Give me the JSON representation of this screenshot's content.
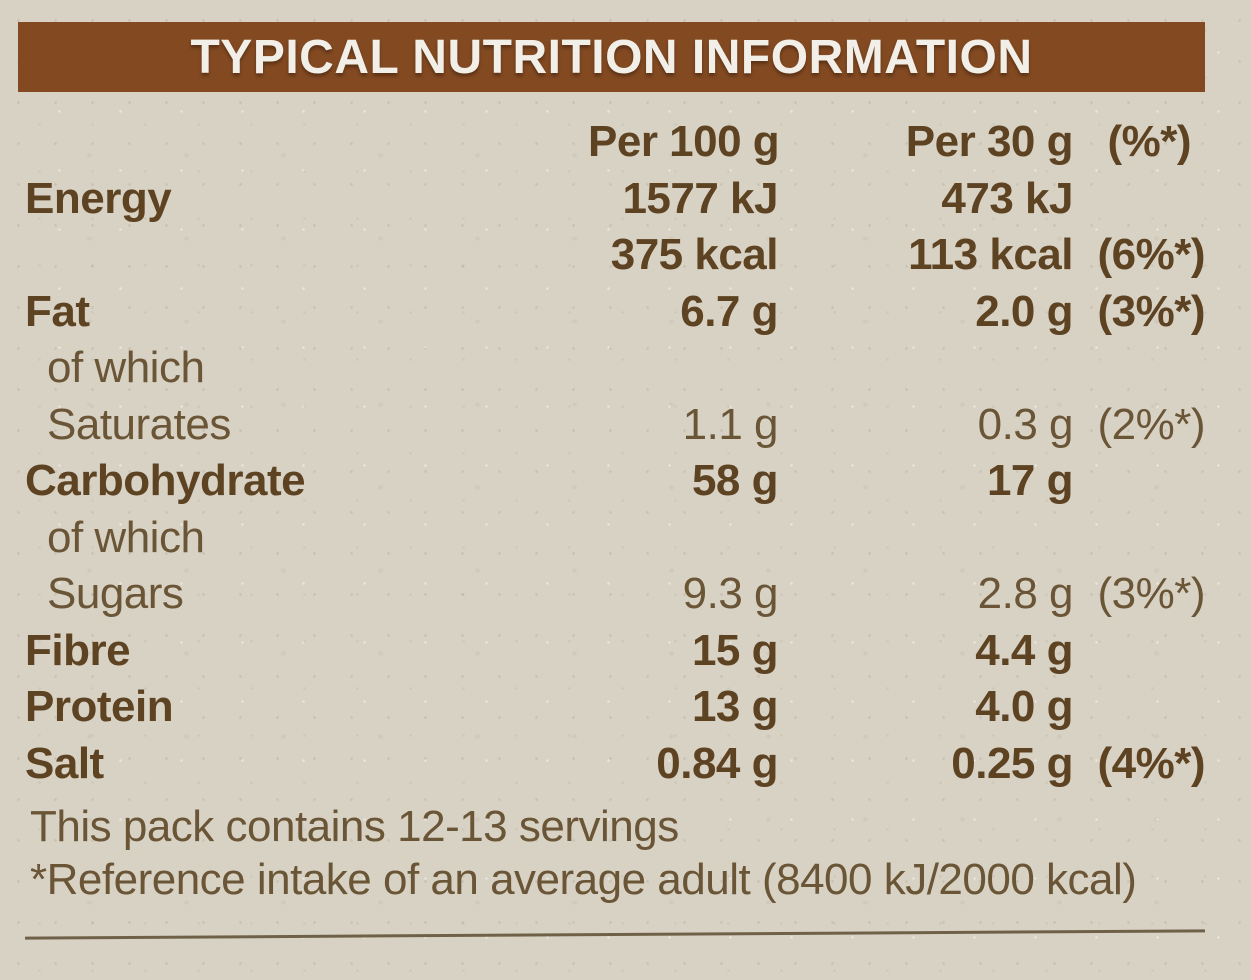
{
  "header": {
    "title": "TYPICAL NUTRITION INFORMATION"
  },
  "table": {
    "columns": [
      "",
      "Per 100 g",
      "Per 30 g",
      "(%*)"
    ],
    "rows": [
      {
        "label": "Energy",
        "per100": "1577 kJ",
        "per30": "473 kJ",
        "ri": "",
        "bold": true,
        "indent": false
      },
      {
        "label": "",
        "per100": "375 kcal",
        "per30": "113 kcal",
        "ri": "(6%*)",
        "bold": true,
        "indent": false
      },
      {
        "label": "Fat",
        "per100": "6.7 g",
        "per30": "2.0 g",
        "ri": "(3%*)",
        "bold": true,
        "indent": false
      },
      {
        "label": "of which",
        "per100": "",
        "per30": "",
        "ri": "",
        "bold": false,
        "indent": true
      },
      {
        "label": "Saturates",
        "per100": "1.1 g",
        "per30": "0.3 g",
        "ri": "(2%*)",
        "bold": false,
        "indent": true
      },
      {
        "label": "Carbohydrate",
        "per100": "58 g",
        "per30": "17 g",
        "ri": "",
        "bold": true,
        "indent": false
      },
      {
        "label": "of which",
        "per100": "",
        "per30": "",
        "ri": "",
        "bold": false,
        "indent": true
      },
      {
        "label": "Sugars",
        "per100": "9.3 g",
        "per30": "2.8 g",
        "ri": "(3%*)",
        "bold": false,
        "indent": true
      },
      {
        "label": "Fibre",
        "per100": "15 g",
        "per30": "4.4 g",
        "ri": "",
        "bold": true,
        "indent": false
      },
      {
        "label": "Protein",
        "per100": "13 g",
        "per30": "4.0 g",
        "ri": "",
        "bold": true,
        "indent": false
      },
      {
        "label": "Salt",
        "per100": "0.84 g",
        "per30": "0.25 g",
        "ri": "(4%*)",
        "bold": true,
        "indent": false
      }
    ]
  },
  "footer": {
    "servings": "This pack contains 12-13 servings",
    "reference": "*Reference intake of an average adult (8400 kJ/2000 kcal)"
  },
  "colors": {
    "background": "#d8d2c5",
    "bar": "#834a22",
    "bar_text": "#f2efe8",
    "text_bold": "#5e4323",
    "text_light": "#6a5536",
    "rule": "#6f6148"
  }
}
